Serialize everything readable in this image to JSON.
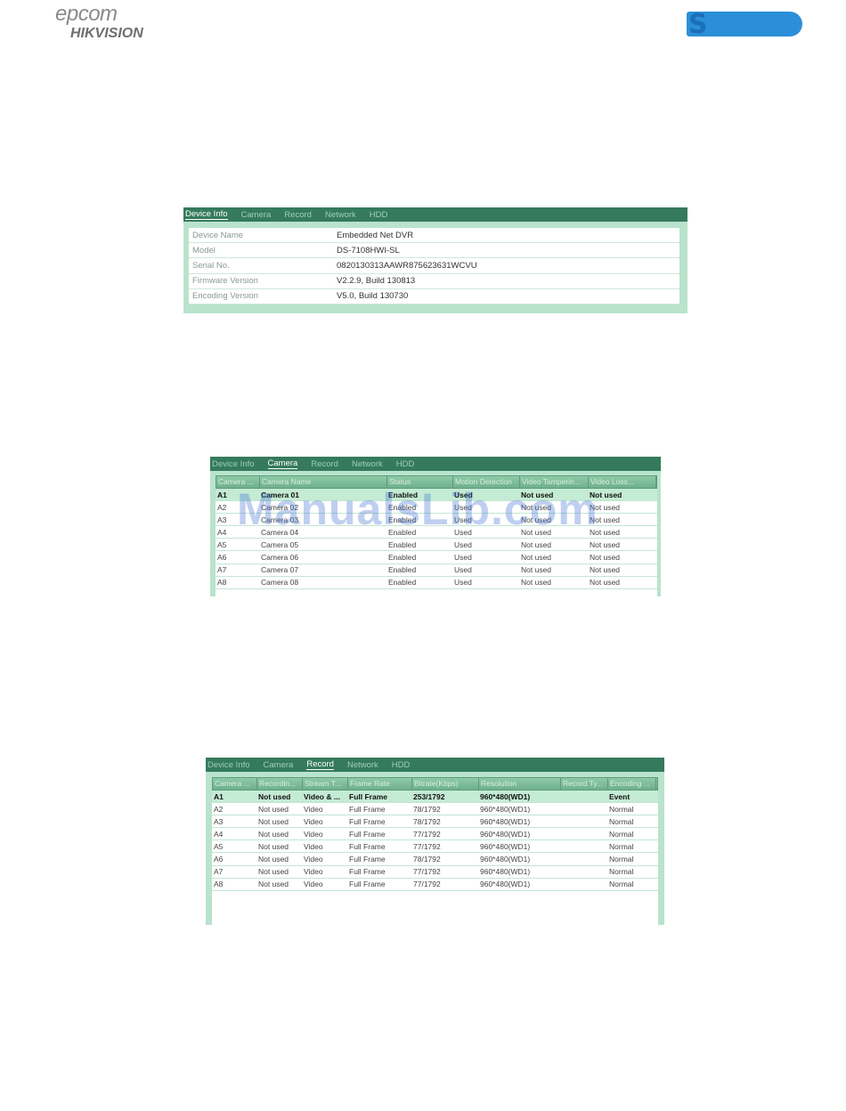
{
  "header": {
    "brand1": "epcom",
    "brand2": "HIKVISION",
    "brand3": "S"
  },
  "watermark": "ManualsLib.com",
  "tabs": [
    "Device Info",
    "Camera",
    "Record",
    "Network",
    "HDD"
  ],
  "device_info": {
    "rows": [
      {
        "label": "Device Name",
        "value": "Embedded Net DVR"
      },
      {
        "label": "Model",
        "value": "DS-7108HWI-SL"
      },
      {
        "label": "Serial No.",
        "value": "0820130313AAWR875623631WCVU"
      },
      {
        "label": "Firmware Version",
        "value": "V2.2.9, Build 130813"
      },
      {
        "label": "Encoding Version",
        "value": "V5.0, Build 130730"
      }
    ]
  },
  "camera": {
    "columns": [
      "Camera ...",
      "Camera Name",
      "Status",
      "Motion Detection",
      "Video Tamperin...",
      "Video Loss..."
    ],
    "rows": [
      [
        "A1",
        "Camera 01",
        "Enabled",
        "Used",
        "Not used",
        "Not used"
      ],
      [
        "A2",
        "Camera 02",
        "Enabled",
        "Used",
        "Not used",
        "Not used"
      ],
      [
        "A3",
        "Camera 03",
        "Enabled",
        "Used",
        "Not used",
        "Not used"
      ],
      [
        "A4",
        "Camera 04",
        "Enabled",
        "Used",
        "Not used",
        "Not used"
      ],
      [
        "A5",
        "Camera 05",
        "Enabled",
        "Used",
        "Not used",
        "Not used"
      ],
      [
        "A6",
        "Camera 06",
        "Enabled",
        "Used",
        "Not used",
        "Not used"
      ],
      [
        "A7",
        "Camera 07",
        "Enabled",
        "Used",
        "Not used",
        "Not used"
      ],
      [
        "A8",
        "Camera 08",
        "Enabled",
        "Used",
        "Not used",
        "Not used"
      ]
    ]
  },
  "record": {
    "columns": [
      "Camera ...",
      "Recordin...",
      "Stream T...",
      "Frame Rate",
      "Bitrate(Kbps)",
      "Resolution",
      "Record Ty...",
      "Encoding ..."
    ],
    "rows": [
      [
        "A1",
        "Not used",
        "Video & ...",
        "Full Frame",
        "253/1792",
        "960*480(WD1)",
        "",
        "Event"
      ],
      [
        "A2",
        "Not used",
        "Video",
        "Full Frame",
        "78/1792",
        "960*480(WD1)",
        "",
        "Normal"
      ],
      [
        "A3",
        "Not used",
        "Video",
        "Full Frame",
        "78/1792",
        "960*480(WD1)",
        "",
        "Normal"
      ],
      [
        "A4",
        "Not used",
        "Video",
        "Full Frame",
        "77/1792",
        "960*480(WD1)",
        "",
        "Normal"
      ],
      [
        "A5",
        "Not used",
        "Video",
        "Full Frame",
        "77/1792",
        "960*480(WD1)",
        "",
        "Normal"
      ],
      [
        "A6",
        "Not used",
        "Video",
        "Full Frame",
        "78/1792",
        "960*480(WD1)",
        "",
        "Normal"
      ],
      [
        "A7",
        "Not used",
        "Video",
        "Full Frame",
        "77/1792",
        "960*480(WD1)",
        "",
        "Normal"
      ],
      [
        "A8",
        "Not used",
        "Video",
        "Full Frame",
        "77/1792",
        "960*480(WD1)",
        "",
        "Normal"
      ]
    ]
  }
}
